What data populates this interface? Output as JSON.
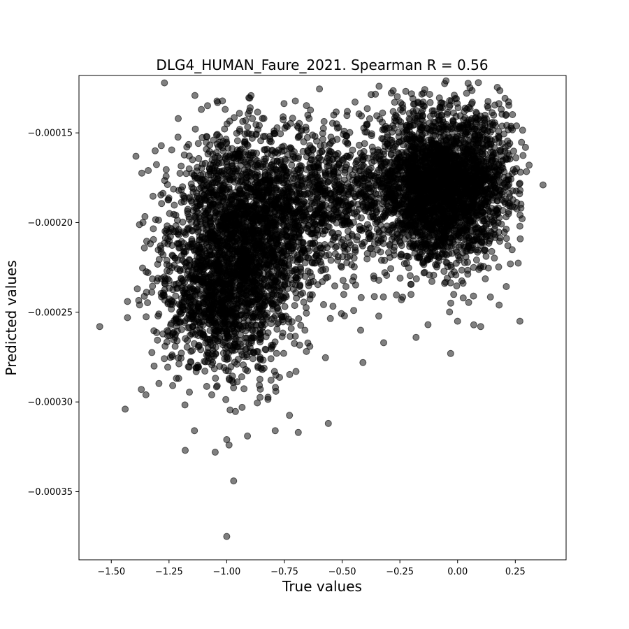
{
  "chart_data": {
    "type": "scatter",
    "title": "DLG4_HUMAN_Faure_2021. Spearman R = 0.56",
    "xlabel": "True values",
    "ylabel": "Predicted values",
    "xlim": [
      -1.64,
      0.47
    ],
    "ylim": [
      -0.000388,
      -0.000118
    ],
    "x_ticks": [
      -1.5,
      -1.25,
      -1.0,
      -0.75,
      -0.5,
      -0.25,
      0.0,
      0.25
    ],
    "x_tick_labels": [
      "−1.50",
      "−1.25",
      "−1.00",
      "−0.75",
      "−0.50",
      "−0.25",
      "0.00",
      "0.25"
    ],
    "y_ticks": [
      -0.00015,
      -0.0002,
      -0.00025,
      -0.0003,
      -0.00035
    ],
    "y_tick_labels": [
      "−0.00015",
      "−0.00020",
      "−0.00025",
      "−0.00030",
      "−0.00035"
    ],
    "grid": false,
    "point_color": "#000000",
    "clusters": [
      {
        "cx": -0.92,
        "cy": -0.000205,
        "sx": 0.16,
        "sy": 2.8e-05,
        "n": 2200
      },
      {
        "cx": -1.02,
        "cy": -0.000245,
        "sx": 0.14,
        "sy": 2.2e-05,
        "n": 900
      },
      {
        "cx": -0.55,
        "cy": -0.000185,
        "sx": 0.15,
        "sy": 2e-05,
        "n": 700
      },
      {
        "cx": -0.1,
        "cy": -0.00018,
        "sx": 0.13,
        "sy": 2.2e-05,
        "n": 2400
      },
      {
        "cx": 0.1,
        "cy": -0.000175,
        "sx": 0.08,
        "sy": 2.2e-05,
        "n": 500
      }
    ],
    "outliers": [
      [
        -1.55,
        -0.000258
      ],
      [
        -1.44,
        -0.000304
      ],
      [
        -1.43,
        -0.000244
      ],
      [
        -1.43,
        -0.000253
      ],
      [
        -1.37,
        -0.000293
      ],
      [
        -1.35,
        -0.000296
      ],
      [
        -1.34,
        -0.000171
      ],
      [
        -1.31,
        -0.00016
      ],
      [
        -1.21,
        -0.000142
      ],
      [
        -1.18,
        -0.000327
      ],
      [
        -1.14,
        -0.000316
      ],
      [
        -1.05,
        -0.000328
      ],
      [
        -1.0,
        -0.000321
      ],
      [
        -0.99,
        -0.000324
      ],
      [
        -0.97,
        -0.000344
      ],
      [
        -1.0,
        -0.000375
      ],
      [
        -0.91,
        -0.000319
      ],
      [
        -0.79,
        -0.000316
      ],
      [
        -0.69,
        -0.000317
      ],
      [
        -0.56,
        -0.000312
      ],
      [
        -0.41,
        -0.000278
      ],
      [
        -0.32,
        -0.000267
      ],
      [
        -0.18,
        -0.000264
      ],
      [
        -0.03,
        -0.000273
      ],
      [
        0.0,
        -0.000255
      ],
      [
        0.07,
        -0.000257
      ],
      [
        0.1,
        -0.000258
      ],
      [
        0.18,
        -0.000246
      ],
      [
        0.27,
        -0.000255
      ],
      [
        0.37,
        -0.000179
      ],
      [
        0.31,
        -0.000168
      ],
      [
        0.27,
        -0.000202
      ],
      [
        -0.34,
        -0.000124
      ],
      [
        -0.05,
        -0.000121
      ],
      [
        0.09,
        -0.000122
      ],
      [
        -0.7,
        -0.000283
      ],
      [
        -0.45,
        -0.000249
      ],
      [
        -0.49,
        -0.000252
      ],
      [
        -0.42,
        -0.00026
      ],
      [
        -0.64,
        -0.000269
      ]
    ]
  }
}
